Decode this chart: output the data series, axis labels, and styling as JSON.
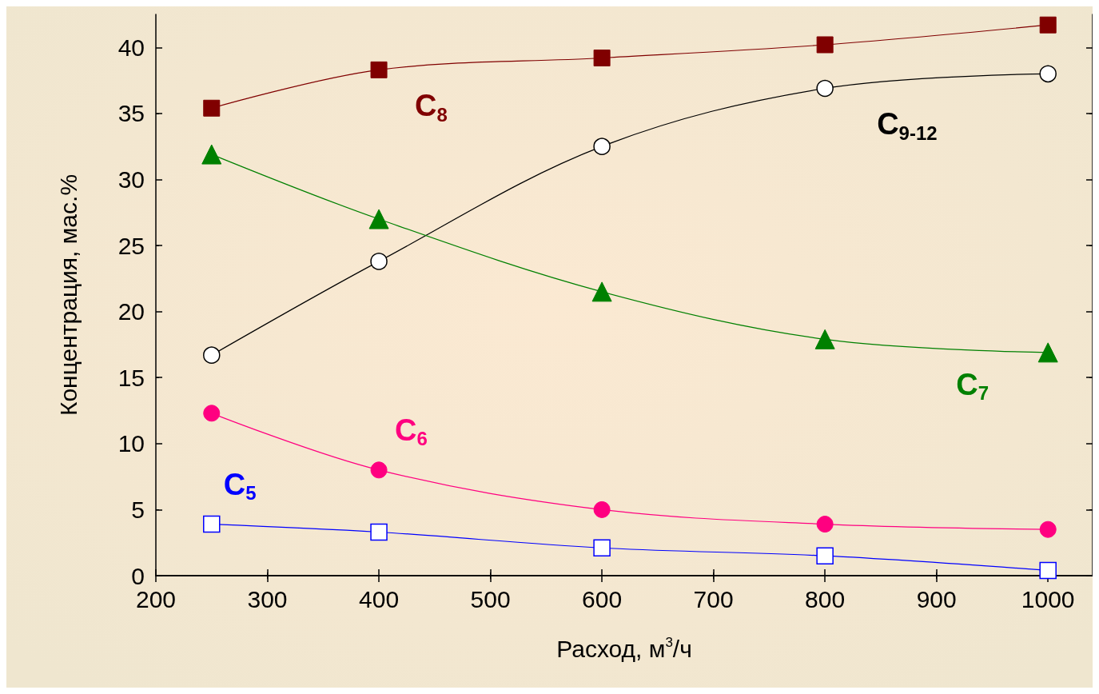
{
  "chart_data": {
    "type": "line",
    "xlabel": "Расход, м$^{3}$/ч",
    "ylabel": "Концентрация, мас.%",
    "x": [
      250,
      400,
      600,
      800,
      1000
    ],
    "series": [
      {
        "name": "C$_{8}$",
        "color": "#800000",
        "marker": "square",
        "values": [
          35.4,
          38.3,
          39.2,
          40.2,
          41.7
        ]
      },
      {
        "name": "C$_{9-12}$",
        "color": "#000000",
        "marker": "circle",
        "values": [
          16.7,
          23.8,
          32.5,
          36.9,
          38.0
        ]
      },
      {
        "name": "C$_{7}$",
        "color": "#008000",
        "marker": "triangle",
        "values": [
          31.9,
          27.0,
          21.5,
          17.9,
          16.9
        ]
      },
      {
        "name": "C$_{6}$",
        "color": "#ff0080",
        "marker": "circle",
        "values": [
          12.3,
          8.0,
          5.0,
          3.9,
          3.5
        ]
      },
      {
        "name": "C$_{5}$",
        "color": "#0000ff",
        "marker": "square",
        "values": [
          3.9,
          3.3,
          2.1,
          1.5,
          0.4
        ]
      }
    ],
    "xlim": [
      200,
      1040
    ],
    "ylim": [
      0,
      42.5
    ],
    "xticks": [
      200,
      300,
      400,
      500,
      600,
      700,
      800,
      900,
      1000
    ],
    "yticks": [
      0,
      5,
      10,
      15,
      20,
      25,
      30,
      35,
      40
    ],
    "grid": false,
    "legend": false
  }
}
